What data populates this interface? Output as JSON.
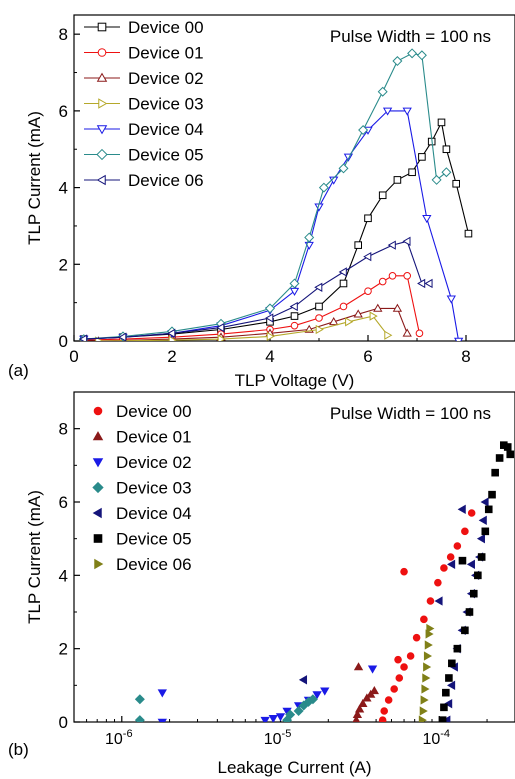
{
  "chart_data": [
    {
      "panel_label": "(a)",
      "type": "line",
      "xlabel": "TLP Voltage (V)",
      "ylabel": "TLP Current (mA)",
      "xlim": [
        0,
        9
      ],
      "ylim": [
        0,
        8.5
      ],
      "xticks": [
        "0",
        "2",
        "4",
        "6",
        "8"
      ],
      "yticks": [
        "0",
        "2",
        "4",
        "6",
        "8"
      ],
      "annotation": "Pulse Width = 100 ns",
      "legend_position": "top-left",
      "series": [
        {
          "name": "Device 00",
          "color": "#000000",
          "marker": "square",
          "points": [
            [
              0.2,
              0.05
            ],
            [
              1,
              0.1
            ],
            [
              2,
              0.18
            ],
            [
              3,
              0.3
            ],
            [
              4,
              0.5
            ],
            [
              4.5,
              0.65
            ],
            [
              5,
              0.9
            ],
            [
              5.5,
              1.5
            ],
            [
              5.8,
              2.5
            ],
            [
              6,
              3.2
            ],
            [
              6.3,
              3.8
            ],
            [
              6.6,
              4.2
            ],
            [
              6.9,
              4.4
            ],
            [
              7.1,
              4.8
            ],
            [
              7.3,
              5.2
            ],
            [
              7.5,
              5.7
            ],
            [
              7.6,
              5.0
            ],
            [
              7.8,
              4.1
            ],
            [
              8.05,
              2.8
            ]
          ]
        },
        {
          "name": "Device 01",
          "color": "#ee1111",
          "marker": "circle",
          "points": [
            [
              0.2,
              0.02
            ],
            [
              1,
              0.05
            ],
            [
              2,
              0.1
            ],
            [
              3,
              0.18
            ],
            [
              4,
              0.3
            ],
            [
              4.5,
              0.4
            ],
            [
              5,
              0.6
            ],
            [
              5.5,
              0.9
            ],
            [
              6,
              1.3
            ],
            [
              6.3,
              1.55
            ],
            [
              6.5,
              1.7
            ],
            [
              6.8,
              1.7
            ],
            [
              7.05,
              0.2
            ]
          ]
        },
        {
          "name": "Device 02",
          "color": "#8b1a1a",
          "marker": "triangle-up",
          "points": [
            [
              0.5,
              0.0
            ],
            [
              2,
              0.05
            ],
            [
              3,
              0.1
            ],
            [
              4,
              0.2
            ],
            [
              4.8,
              0.3
            ],
            [
              5.3,
              0.5
            ],
            [
              5.8,
              0.7
            ],
            [
              6.2,
              0.85
            ],
            [
              6.6,
              0.85
            ],
            [
              6.8,
              0.2
            ]
          ]
        },
        {
          "name": "Device 03",
          "color": "#b5a82a",
          "marker": "triangle-right",
          "points": [
            [
              0.5,
              0.0
            ],
            [
              2,
              0.02
            ],
            [
              3,
              0.05
            ],
            [
              4,
              0.12
            ],
            [
              5,
              0.3
            ],
            [
              5.6,
              0.5
            ],
            [
              6.1,
              0.65
            ],
            [
              6.4,
              0.15
            ]
          ]
        },
        {
          "name": "Device 04",
          "color": "#1a1ae6",
          "marker": "triangle-down",
          "points": [
            [
              0.2,
              0.05
            ],
            [
              1,
              0.1
            ],
            [
              2,
              0.2
            ],
            [
              3,
              0.4
            ],
            [
              4,
              0.8
            ],
            [
              4.5,
              1.3
            ],
            [
              4.8,
              2.5
            ],
            [
              5.0,
              3.5
            ],
            [
              5.3,
              4.2
            ],
            [
              5.6,
              4.8
            ],
            [
              6.0,
              5.5
            ],
            [
              6.4,
              6.0
            ],
            [
              6.8,
              6.0
            ],
            [
              7.2,
              3.2
            ],
            [
              7.7,
              1.1
            ],
            [
              7.85,
              0.0
            ]
          ]
        },
        {
          "name": "Device 05",
          "color": "#2a8b8b",
          "marker": "diamond",
          "points": [
            [
              0.2,
              0.05
            ],
            [
              1,
              0.12
            ],
            [
              2,
              0.25
            ],
            [
              3,
              0.45
            ],
            [
              4,
              0.85
            ],
            [
              4.5,
              1.5
            ],
            [
              4.8,
              2.7
            ],
            [
              5.1,
              4.0
            ],
            [
              5.5,
              4.5
            ],
            [
              5.9,
              5.5
            ],
            [
              6.3,
              6.5
            ],
            [
              6.6,
              7.3
            ],
            [
              6.9,
              7.5
            ],
            [
              7.1,
              7.45
            ],
            [
              7.4,
              4.2
            ],
            [
              7.6,
              4.4
            ]
          ]
        },
        {
          "name": "Device 06",
          "color": "#14147a",
          "marker": "triangle-left",
          "points": [
            [
              0.2,
              0.05
            ],
            [
              1,
              0.1
            ],
            [
              2,
              0.2
            ],
            [
              3,
              0.35
            ],
            [
              4,
              0.6
            ],
            [
              4.5,
              0.9
            ],
            [
              5,
              1.4
            ],
            [
              5.5,
              1.8
            ],
            [
              6,
              2.2
            ],
            [
              6.5,
              2.5
            ],
            [
              6.8,
              2.6
            ],
            [
              7.1,
              1.5
            ],
            [
              7.25,
              1.5
            ]
          ]
        }
      ]
    },
    {
      "panel_label": "(b)",
      "type": "scatter",
      "xlabel": "Leakage Current (A)",
      "ylabel": "TLP Current (mA)",
      "xscale": "log",
      "xlim": [
        5e-07,
        0.0003
      ],
      "ylim": [
        0,
        9
      ],
      "xticks": [
        {
          "value": 1e-06,
          "label": "10",
          "sup": "-6"
        },
        {
          "value": 1e-05,
          "label": "10",
          "sup": "-5"
        },
        {
          "value": 0.0001,
          "label": "10",
          "sup": "-4"
        }
      ],
      "yticks": [
        "0",
        "2",
        "4",
        "6",
        "8"
      ],
      "annotation": "Pulse Width = 100 ns",
      "legend_position": "top-left",
      "series": [
        {
          "name": "Device 00",
          "color": "#ee1111",
          "marker": "circle",
          "points": [
            [
              4.4e-05,
              0.05
            ],
            [
              4.5e-05,
              0.3
            ],
            [
              4.8e-05,
              0.6
            ],
            [
              5.2e-05,
              0.9
            ],
            [
              5.6e-05,
              1.2
            ],
            [
              6e-05,
              1.5
            ],
            [
              6.6e-05,
              1.8
            ],
            [
              7.2e-05,
              2.3
            ],
            [
              8e-05,
              2.8
            ],
            [
              8.8e-05,
              3.3
            ],
            [
              9.8e-05,
              3.8
            ],
            [
              0.000107,
              4.2
            ],
            [
              0.000118,
              4.5
            ],
            [
              0.00013,
              4.8
            ],
            [
              0.000145,
              5.2
            ],
            [
              0.00016,
              5.7
            ],
            [
              6e-05,
              4.1
            ],
            [
              5.5e-05,
              1.7
            ]
          ]
        },
        {
          "name": "Device 01",
          "color": "#8b1a1a",
          "marker": "triangle-up",
          "points": [
            [
              3e-05,
              0.05
            ],
            [
              3.05e-05,
              0.2
            ],
            [
              3.15e-05,
              0.35
            ],
            [
              3.3e-05,
              0.5
            ],
            [
              3.5e-05,
              0.65
            ],
            [
              3.7e-05,
              0.75
            ],
            [
              3.9e-05,
              0.85
            ],
            [
              3.1e-05,
              1.5
            ]
          ]
        },
        {
          "name": "Device 02",
          "color": "#1a1ae6",
          "marker": "triangle-down",
          "points": [
            [
              1.8e-06,
              0.8
            ],
            [
              1.8e-06,
              0.0
            ],
            [
              8e-06,
              0.05
            ],
            [
              9e-06,
              0.1
            ],
            [
              1e-05,
              0.15
            ],
            [
              1.1e-05,
              0.3
            ],
            [
              1.3e-05,
              0.45
            ],
            [
              1.5e-05,
              0.6
            ],
            [
              1.7e-05,
              0.75
            ],
            [
              1.9e-05,
              0.85
            ],
            [
              3.8e-05,
              1.45
            ]
          ]
        },
        {
          "name": "Device 03",
          "color": "#2a8b8b",
          "marker": "diamond",
          "points": [
            [
              1.3e-06,
              0.62
            ],
            [
              1.3e-06,
              0.05
            ],
            [
              1.1e-05,
              0.05
            ],
            [
              1.15e-05,
              0.2
            ],
            [
              1.3e-05,
              0.3
            ],
            [
              1.4e-05,
              0.45
            ],
            [
              1.5e-05,
              0.55
            ],
            [
              1.6e-05,
              0.62
            ]
          ]
        },
        {
          "name": "Device 04",
          "color": "#14147a",
          "marker": "triangle-left",
          "points": [
            [
              1.4e-05,
              1.15
            ],
            [
              0.000112,
              0.05
            ],
            [
              0.000115,
              0.5
            ],
            [
              0.00012,
              1.0
            ],
            [
              0.000125,
              1.5
            ],
            [
              0.00013,
              2.0
            ],
            [
              0.00014,
              2.5
            ],
            [
              0.00015,
              3.0
            ],
            [
              0.00016,
              3.5
            ],
            [
              0.00017,
              4.0
            ],
            [
              0.00018,
              4.5
            ],
            [
              0.000185,
              5.0
            ],
            [
              0.00019,
              5.5
            ],
            [
              0.000195,
              6.0
            ],
            [
              0.00014,
              5.8
            ],
            [
              0.00016,
              4.3
            ],
            [
              0.00012,
              4.3
            ],
            [
              0.0001,
              3.3
            ]
          ]
        },
        {
          "name": "Device 05",
          "color": "#000000",
          "marker": "square",
          "points": [
            [
              0.000105,
              0.05
            ],
            [
              0.000107,
              0.4
            ],
            [
              0.00011,
              0.8
            ],
            [
              0.000115,
              1.2
            ],
            [
              0.00012,
              1.6
            ],
            [
              0.00013,
              2.0
            ],
            [
              0.000145,
              2.5
            ],
            [
              0.000155,
              3.0
            ],
            [
              0.000165,
              3.5
            ],
            [
              0.000175,
              4.0
            ],
            [
              0.000185,
              4.5
            ],
            [
              0.000195,
              5.2
            ],
            [
              0.000205,
              5.8
            ],
            [
              0.000215,
              6.2
            ],
            [
              0.000225,
              6.8
            ],
            [
              0.00024,
              7.2
            ],
            [
              0.000255,
              7.55
            ],
            [
              0.00027,
              7.5
            ],
            [
              0.00028,
              7.3
            ],
            [
              0.00014,
              4.4
            ]
          ]
        },
        {
          "name": "Device 06",
          "color": "#808018",
          "marker": "triangle-right",
          "points": [
            [
              7.8e-05,
              0.05
            ],
            [
              7.9e-05,
              0.3
            ],
            [
              8e-05,
              0.6
            ],
            [
              8.1e-05,
              0.9
            ],
            [
              8.2e-05,
              1.2
            ],
            [
              8.3e-05,
              1.5
            ],
            [
              8.4e-05,
              1.8
            ],
            [
              8.5e-05,
              2.1
            ],
            [
              8.6e-05,
              2.4
            ],
            [
              8.7e-05,
              2.55
            ]
          ]
        }
      ]
    }
  ]
}
